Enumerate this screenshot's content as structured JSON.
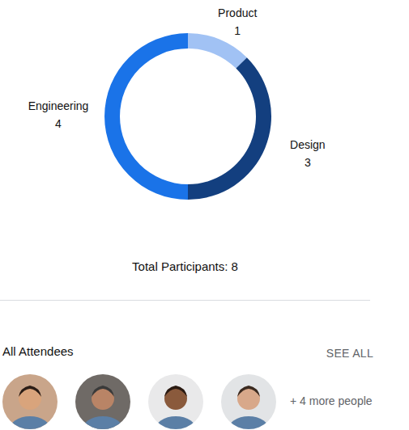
{
  "chart_data": {
    "type": "pie",
    "donut": true,
    "categories": [
      "Product",
      "Design",
      "Engineering"
    ],
    "values": [
      1,
      3,
      4
    ],
    "colors": [
      "#a1c2f4",
      "#133f7f",
      "#1a73e8"
    ],
    "data_labels": true
  },
  "summary": "Total Participants: 8",
  "attendees": {
    "title": "All Attendees",
    "action": "SEE ALL",
    "more": "+ 4 more people"
  }
}
